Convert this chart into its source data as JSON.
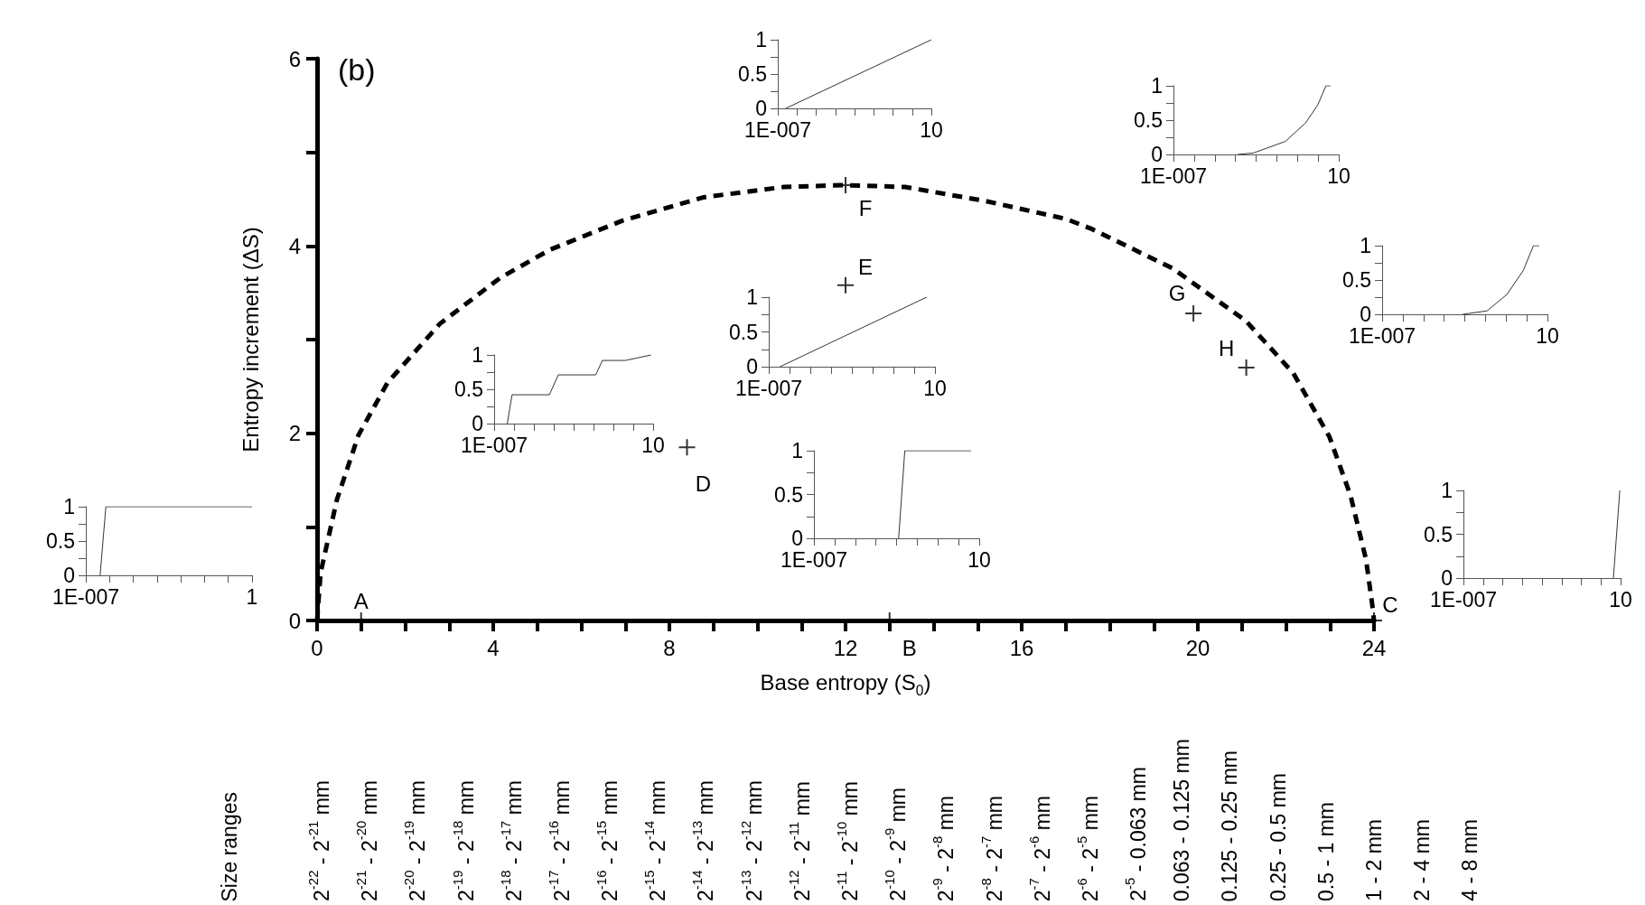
{
  "chart_data": [
    {
      "type": "line",
      "title": "(b)",
      "xlabel": "Base entropy (S$_{0}$)",
      "ylabel": "Entropy increment (ΔS)",
      "xlim": [
        0,
        24
      ],
      "ylim": [
        0,
        6
      ],
      "xticks": [
        0,
        {
          "value": 1,
          "label": null
        },
        {
          "value": 2,
          "label": null
        },
        {
          "value": 3,
          "label": null
        },
        4,
        {
          "value": 5,
          "label": null
        },
        {
          "value": 6,
          "label": null
        },
        {
          "value": 7,
          "label": null
        },
        8,
        {
          "value": 9,
          "label": null
        },
        {
          "value": 10,
          "label": null
        },
        {
          "value": 11,
          "label": null
        },
        12,
        {
          "value": 13,
          "label": null
        },
        {
          "value": 14,
          "label": null
        },
        {
          "value": 15,
          "label": null
        },
        16,
        {
          "value": 17,
          "label": null
        },
        {
          "value": 18,
          "label": null
        },
        {
          "value": 19,
          "label": null
        },
        20,
        {
          "value": 21,
          "label": null
        },
        {
          "value": 22,
          "label": null
        },
        {
          "value": 23,
          "label": null
        },
        24
      ],
      "yticks": [
        0,
        {
          "value": 1,
          "label": null
        },
        2,
        {
          "value": 3,
          "label": null
        },
        4,
        {
          "value": 5,
          "label": null
        },
        6
      ],
      "series": [
        {
          "type": "line",
          "color": "#000000",
          "line_style": "dashed",
          "marker": "none",
          "x": [
            0,
            0.08,
            0.45,
            0.94,
            1.6,
            2.79,
            4.16,
            5.29,
            6.93,
            8.78,
            10.6,
            11.98,
            13.35,
            15.18,
            17.0,
            17.6,
            19.43,
            21.09,
            22.17,
            22.99,
            23.47,
            23.82,
            23.96,
            24
          ],
          "values": [
            0,
            0.51,
            1.29,
            1.98,
            2.54,
            3.17,
            3.66,
            3.96,
            4.27,
            4.52,
            4.63,
            4.65,
            4.63,
            4.48,
            4.29,
            4.18,
            3.76,
            3.2,
            2.64,
            1.96,
            1.33,
            0.65,
            0.17,
            0
          ]
        },
        {
          "type": "scatter",
          "color": "#000000",
          "marker": "cross",
          "x": [
            1,
            13,
            24,
            8.4,
            12,
            12,
            19.9,
            21.1
          ],
          "values": [
            0,
            0,
            0,
            1.85,
            3.58,
            4.65,
            3.28,
            2.7
          ]
        }
      ],
      "annotations": [
        {
          "text": "A",
          "x": 1,
          "y": 0
        },
        {
          "text": "B",
          "x": 13,
          "y": 0
        },
        {
          "text": "C",
          "x": 24,
          "y": 0
        },
        {
          "text": "D",
          "x": 8.4,
          "y": 1.85
        },
        {
          "text": "E",
          "x": 12,
          "y": 3.58
        },
        {
          "text": "F",
          "x": 12,
          "y": 4.65
        },
        {
          "text": "G",
          "x": 19.9,
          "y": 3.28
        },
        {
          "text": "H",
          "x": 21.1,
          "y": 2.7
        },
        "Size ranges",
        "2$^{-22}$ - 2$^{-21}$ mm",
        "2$^{-21}$ - 2$^{-20}$ mm",
        "2$^{-20}$ - 2$^{-19}$ mm",
        "2$^{-19}$ - 2$^{-18}$ mm",
        "2$^{-18}$ - 2$^{-17}$ mm",
        "2$^{-17}$ - 2$^{-16}$ mm",
        "2$^{-16}$ - 2$^{-15}$ mm",
        "2$^{-15}$ - 2$^{-14}$ mm",
        "2$^{-14}$ - 2$^{-13}$ mm",
        "2$^{-13}$ - 2$^{-12}$ mm",
        "2$^{-12}$ - 2$^{-11}$ mm",
        "2$^{-11}$ - 2$^{-10}$ mm",
        "2$^{-10}$ - 2$^{-9}$ mm",
        "2$^{-9}$ - 2$^{-8}$ mm",
        "2$^{-8}$ - 2$^{-7}$ mm",
        "2$^{-7}$ - 2$^{-6}$ mm",
        "2$^{-6}$ - 2$^{-5}$ mm",
        "2$^{-5}$ - 0.063 mm",
        "0.063 - 0.125 mm",
        "0.125 - 0.25 mm",
        "0.25 - 0.5 mm",
        "0.5 - 1 mm",
        "1 - 2 mm",
        "2 - 4 mm",
        "4 - 8 mm"
      ]
    },
    {
      "type": "line",
      "log": "x",
      "xlim": [
        1e-07,
        10
      ],
      "ylim": [
        0,
        1
      ],
      "xticks": [
        {
          "value": 1e-07,
          "label": "1E-007"
        },
        {
          "value": 1e-06,
          "label": null
        },
        {
          "value": 1e-05,
          "label": null
        },
        {
          "value": 0.0001,
          "label": null
        },
        {
          "value": 0.001,
          "label": null
        },
        {
          "value": 0.01,
          "label": null
        },
        {
          "value": 0.1,
          "label": null
        },
        {
          "value": 1,
          "label": null
        },
        10
      ],
      "yticks": [
        0,
        {
          "value": 0.25,
          "label": null
        },
        0.5,
        {
          "value": 0.75,
          "label": null
        },
        1
      ],
      "marker": "none",
      "x": [
        2.6e-07,
        10
      ],
      "series": [
        {
          "color": "#333333",
          "values": [
            0,
            1
          ]
        }
      ]
    },
    {
      "type": "line",
      "log": "x",
      "xlim": [
        1e-07,
        10
      ],
      "ylim": [
        0,
        1
      ],
      "xticks": [
        {
          "value": 1e-07,
          "label": "1E-007"
        },
        {
          "value": 1e-06,
          "label": null
        },
        {
          "value": 1e-05,
          "label": null
        },
        {
          "value": 0.0001,
          "label": null
        },
        {
          "value": 0.001,
          "label": null
        },
        {
          "value": 0.01,
          "label": null
        },
        {
          "value": 0.1,
          "label": null
        },
        {
          "value": 1,
          "label": null
        },
        10
      ],
      "yticks": [
        0,
        {
          "value": 0.25,
          "label": null
        },
        0.5,
        {
          "value": 0.75,
          "label": null
        },
        1
      ],
      "marker": "none",
      "x": [
        0.00013,
        0.00072,
        0.026,
        0.25,
        0.96,
        2.4,
        4
      ],
      "series": [
        {
          "color": "#333333",
          "values": [
            0,
            0.02,
            0.19,
            0.46,
            0.72,
            1,
            1
          ]
        }
      ]
    },
    {
      "type": "line",
      "log": "x",
      "xlim": [
        1e-07,
        10
      ],
      "ylim": [
        0,
        1
      ],
      "xticks": [
        {
          "value": 1e-07,
          "label": "1E-007"
        },
        {
          "value": 1e-06,
          "label": null
        },
        {
          "value": 1e-05,
          "label": null
        },
        {
          "value": 0.0001,
          "label": null
        },
        {
          "value": 0.001,
          "label": null
        },
        {
          "value": 0.01,
          "label": null
        },
        {
          "value": 0.1,
          "label": null
        },
        {
          "value": 1,
          "label": null
        },
        10
      ],
      "yticks": [
        0,
        {
          "value": 0.25,
          "label": null
        },
        0.5,
        {
          "value": 0.75,
          "label": null
        },
        1
      ],
      "marker": "none",
      "x": [
        0.00079,
        0.012,
        0.11,
        0.68,
        2.1,
        4
      ],
      "series": [
        {
          "color": "#333333",
          "values": [
            0,
            0.05,
            0.29,
            0.64,
            1,
            1
          ]
        }
      ]
    },
    {
      "type": "line",
      "log": "x",
      "xlim": [
        1e-07,
        10
      ],
      "ylim": [
        0,
        1
      ],
      "xticks": [
        {
          "value": 1e-07,
          "label": "1E-007"
        },
        {
          "value": 1e-06,
          "label": null
        },
        {
          "value": 1e-05,
          "label": null
        },
        {
          "value": 0.0001,
          "label": null
        },
        {
          "value": 0.001,
          "label": null
        },
        {
          "value": 0.01,
          "label": null
        },
        {
          "value": 0.1,
          "label": null
        },
        {
          "value": 1,
          "label": null
        },
        10
      ],
      "yticks": [
        0,
        {
          "value": 0.25,
          "label": null
        },
        0.5,
        {
          "value": 0.75,
          "label": null
        },
        1
      ],
      "marker": "none",
      "x": [
        3.5e-07,
        0.001,
        4
      ],
      "series": [
        {
          "color": "#333333",
          "values": [
            0,
            0.49,
            1
          ]
        }
      ]
    },
    {
      "type": "line",
      "log": "x",
      "xlim": [
        1e-07,
        10
      ],
      "ylim": [
        0,
        1
      ],
      "xticks": [
        {
          "value": 1e-07,
          "label": "1E-007"
        },
        {
          "value": 1e-06,
          "label": null
        },
        {
          "value": 1e-05,
          "label": null
        },
        {
          "value": 0.0001,
          "label": null
        },
        {
          "value": 0.001,
          "label": null
        },
        {
          "value": 0.01,
          "label": null
        },
        {
          "value": 0.1,
          "label": null
        },
        {
          "value": 1,
          "label": null
        },
        10
      ],
      "yticks": [
        0,
        {
          "value": 0.25,
          "label": null
        },
        0.5,
        {
          "value": 0.75,
          "label": null
        },
        1
      ],
      "marker": "none",
      "x": [
        4.6e-07,
        8e-07,
        6e-05,
        0.00017,
        0.013,
        0.028,
        0.4,
        8
      ],
      "series": [
        {
          "color": "#333333",
          "values": [
            0,
            0.42,
            0.42,
            0.71,
            0.71,
            0.92,
            0.92,
            1
          ]
        }
      ]
    },
    {
      "type": "line",
      "log": "x",
      "xlim": [
        1e-07,
        10
      ],
      "ylim": [
        0,
        1
      ],
      "xticks": [
        {
          "value": 1e-07,
          "label": "1E-007"
        },
        {
          "value": 1e-06,
          "label": null
        },
        {
          "value": 1e-05,
          "label": null
        },
        {
          "value": 0.0001,
          "label": null
        },
        {
          "value": 0.001,
          "label": null
        },
        {
          "value": 0.01,
          "label": null
        },
        {
          "value": 0.1,
          "label": null
        },
        {
          "value": 1,
          "label": null
        },
        10
      ],
      "yticks": [
        0,
        {
          "value": 0.25,
          "label": null
        },
        0.5,
        {
          "value": 0.75,
          "label": null
        },
        1
      ],
      "marker": "none",
      "x": [
        0.00126,
        0.0025,
        4
      ],
      "series": [
        {
          "color": "#333333",
          "values": [
            0,
            1,
            1
          ]
        }
      ]
    },
    {
      "type": "line",
      "log": "x",
      "xlim": [
        1e-07,
        10
      ],
      "ylim": [
        0,
        1
      ],
      "xticks": [
        {
          "value": 1e-07,
          "label": "1E-007"
        },
        {
          "value": 1e-06,
          "label": null
        },
        {
          "value": 1e-05,
          "label": null
        },
        {
          "value": 0.0001,
          "label": null
        },
        {
          "value": 0.001,
          "label": null
        },
        {
          "value": 0.01,
          "label": null
        },
        {
          "value": 0.1,
          "label": null
        },
        {
          "value": 1,
          "label": null
        },
        10
      ],
      "yticks": [
        0,
        {
          "value": 0.25,
          "label": null
        },
        0.5,
        {
          "value": 0.75,
          "label": null
        },
        1
      ],
      "marker": "none",
      "x": [
        4.3,
        9.1
      ],
      "series": [
        {
          "color": "#333333",
          "values": [
            0,
            1
          ]
        }
      ]
    },
    {
      "type": "line",
      "log": "x",
      "xlim": [
        1e-07,
        1
      ],
      "ylim": [
        0,
        1
      ],
      "xticks": [
        {
          "value": 1e-07,
          "label": "1E-007"
        },
        {
          "value": 1e-06,
          "label": null
        },
        {
          "value": 1e-05,
          "label": null
        },
        {
          "value": 0.0001,
          "label": null
        },
        {
          "value": 0.001,
          "label": null
        },
        {
          "value": 0.01,
          "label": null
        },
        {
          "value": 0.1,
          "label": null
        },
        1
      ],
      "yticks": [
        0,
        {
          "value": 0.25,
          "label": null
        },
        0.5,
        {
          "value": 0.75,
          "label": null
        },
        1
      ],
      "marker": "none",
      "x": [
        4e-07,
        7e-07,
        1
      ],
      "series": [
        {
          "color": "#333333",
          "values": [
            0,
            1,
            1
          ]
        }
      ]
    }
  ]
}
